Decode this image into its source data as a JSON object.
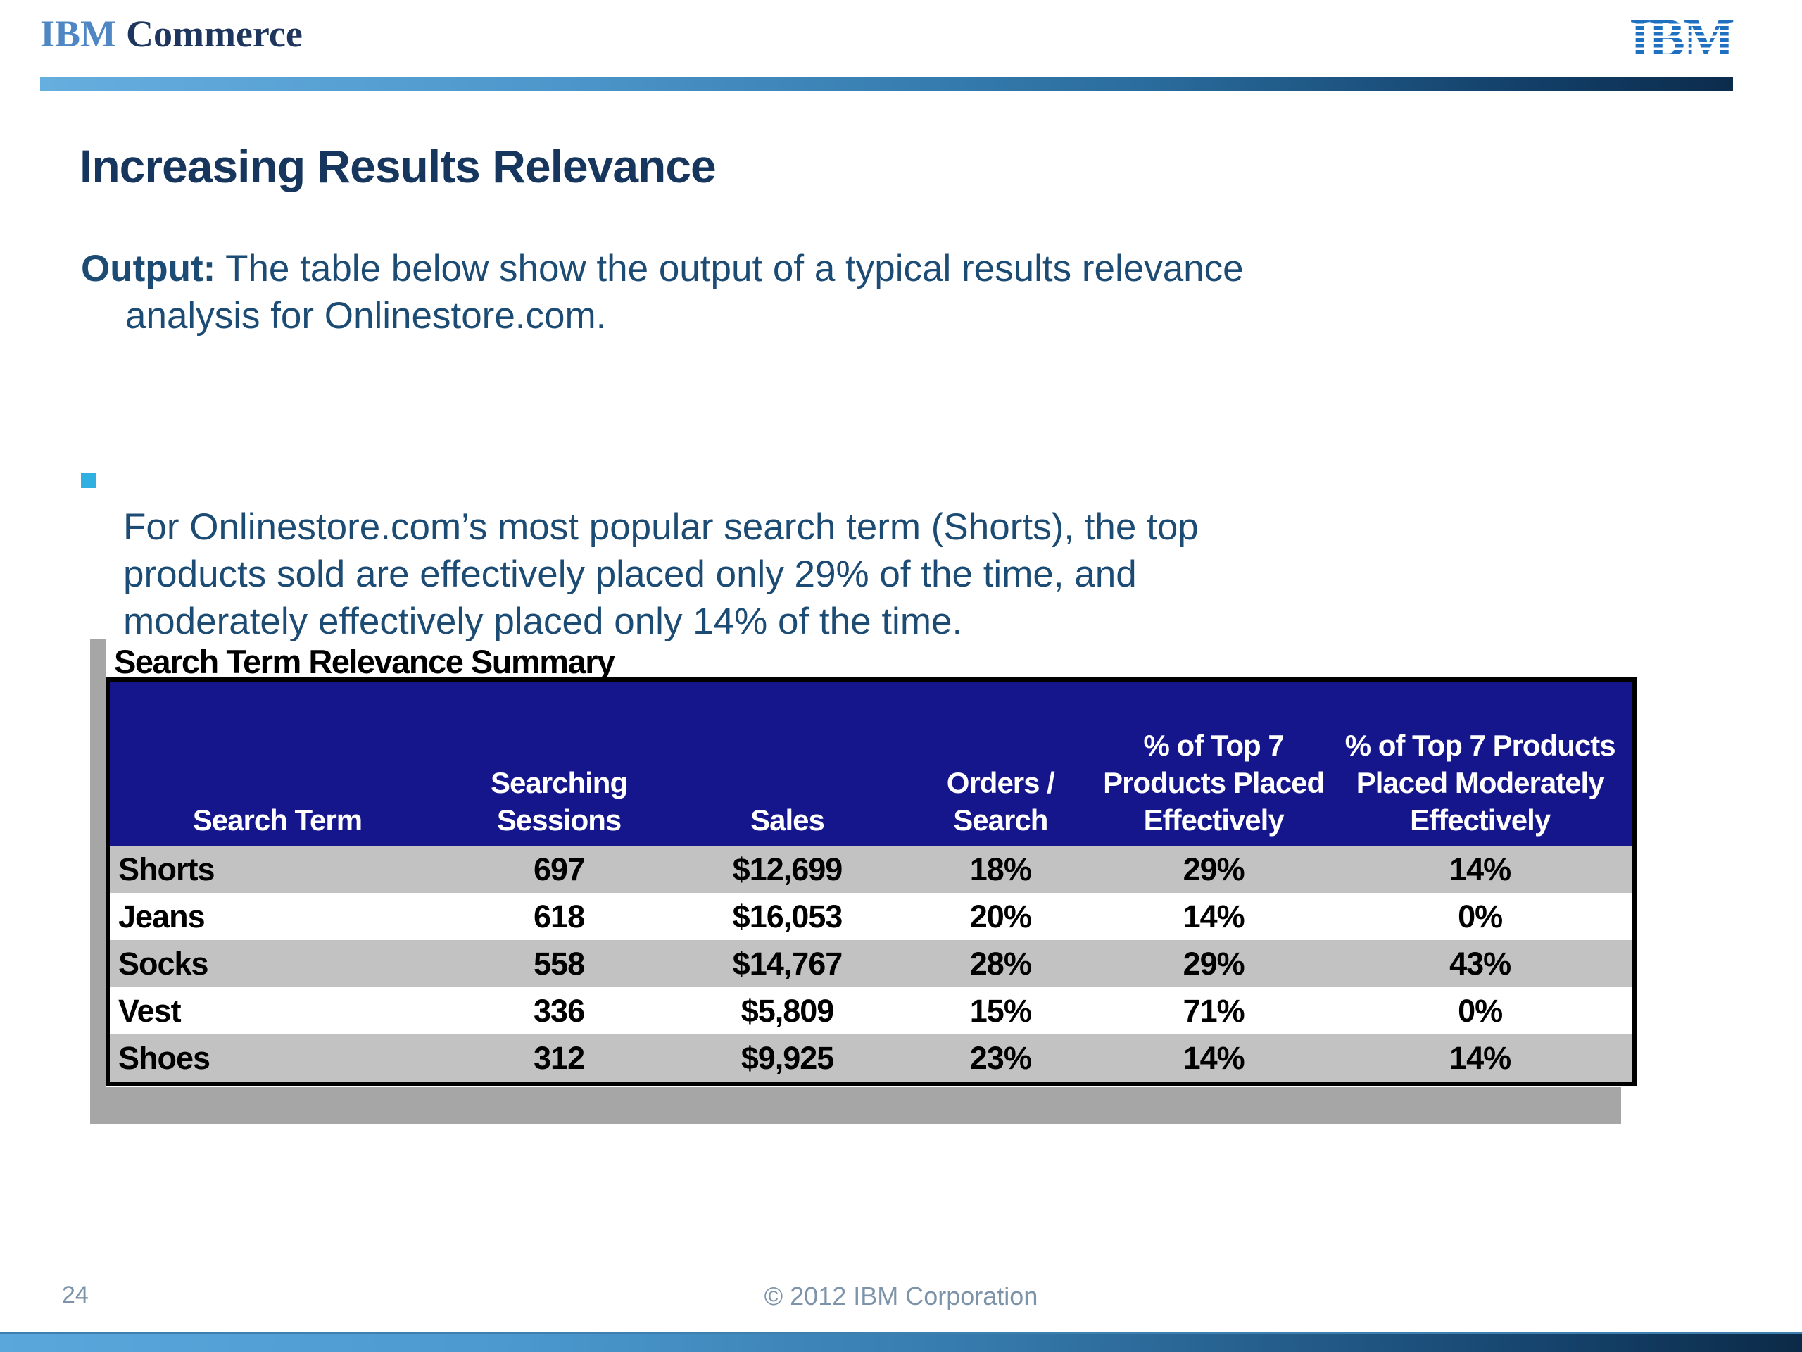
{
  "header": {
    "brand_ibm": "IBM",
    "brand_product": "Commerce",
    "ibm_logo_text": "IBM"
  },
  "title": "Increasing Results Relevance",
  "output_paragraph": {
    "prefix": "Output:",
    "text": " The table below show the output of a typical results relevance\nanalysis for Onlinestore.com."
  },
  "bullet": {
    "text": "For Onlinestore.com’s most popular search term (Shorts), the top\nproducts sold are effectively placed only 29% of the time, and\nmoderately effectively placed only 14% of the time."
  },
  "table": {
    "title": "Search Term Relevance Summary",
    "columns": [
      "Search Term",
      "Searching\nSessions",
      "Sales",
      "Orders /\nSearch",
      "% of Top 7\nProducts Placed\nEffectively",
      "% of Top 7 Products\nPlaced Moderately\nEffectively"
    ],
    "rows": [
      [
        "Shorts",
        "697",
        "$12,699",
        "18%",
        "29%",
        "14%"
      ],
      [
        "Jeans",
        "618",
        "$16,053",
        "20%",
        "14%",
        "0%"
      ],
      [
        "Socks",
        "558",
        "$14,767",
        "28%",
        "29%",
        "43%"
      ],
      [
        "Vest",
        "336",
        "$5,809",
        "15%",
        "71%",
        "0%"
      ],
      [
        "Shoes",
        "312",
        "$9,925",
        "23%",
        "14%",
        "14%"
      ]
    ]
  },
  "footer": {
    "page_number": "24",
    "copyright": "© 2012 IBM Corporation"
  },
  "colors": {
    "title_text": "#17365d",
    "body_text": "#1c4b74",
    "bullet_accent": "#2fb0e0",
    "table_header_bg": "#16168c",
    "table_row_gray": "#c2c2c2",
    "shadow_gray": "#a6a6a6",
    "bar_gradient_start": "#66aede",
    "bar_gradient_end": "#0c2c4c",
    "footer_text": "#7d93a9",
    "ibm_logo_blue": "#1f70c1"
  }
}
